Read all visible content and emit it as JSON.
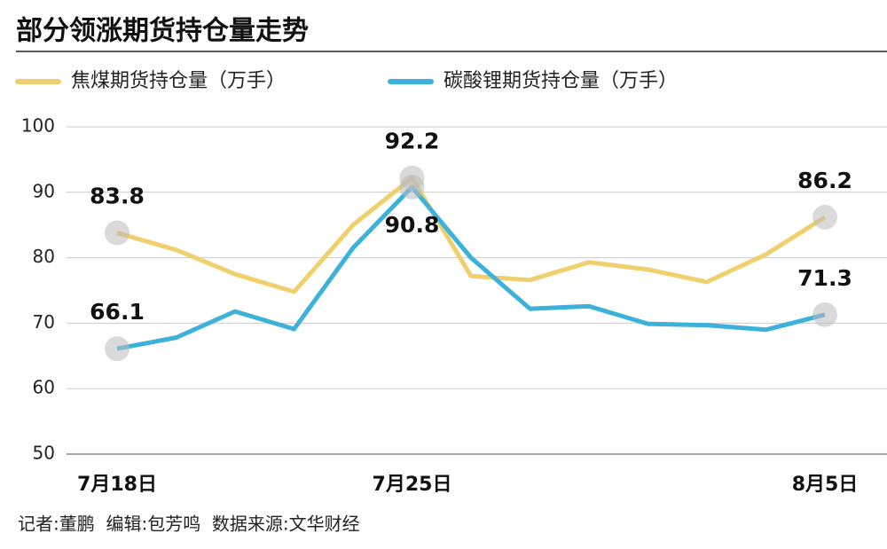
{
  "chart_data": {
    "type": "line",
    "title": "部分领涨期货持仓量走势",
    "categories": [
      "7月18日",
      null,
      null,
      null,
      null,
      "7月25日",
      null,
      null,
      null,
      null,
      null,
      null,
      "8月5日"
    ],
    "series": [
      {
        "name": "焦煤期货持仓量（万手）",
        "color": "#efd06c",
        "values": [
          83.8,
          81.2,
          77.5,
          74.8,
          85.0,
          92.2,
          77.2,
          76.6,
          79.3,
          78.2,
          76.3,
          80.5,
          86.2
        ]
      },
      {
        "name": "碳酸锂期货持仓量（万手）",
        "color": "#3cb1d9",
        "values": [
          66.1,
          67.8,
          71.8,
          69.1,
          81.5,
          90.8,
          80.0,
          72.2,
          72.6,
          69.9,
          69.7,
          69.0,
          71.3
        ]
      }
    ],
    "ylim": [
      50,
      100
    ],
    "yticks": [
      50,
      60,
      70,
      80,
      90,
      100
    ],
    "grid": true
  },
  "footer": "记者:董鹏  编辑:包芳鸣  数据来源:文华财经"
}
